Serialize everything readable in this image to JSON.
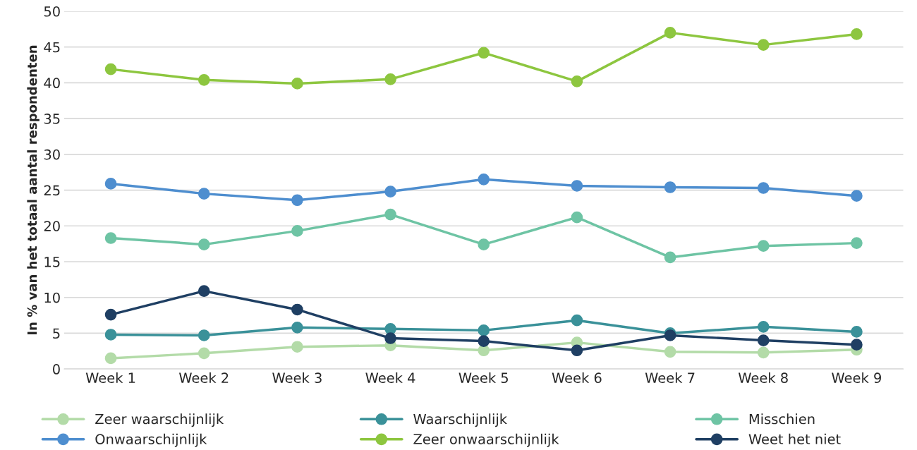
{
  "chart_data": {
    "type": "line",
    "ylabel": "In % van het totaal aantal respondenten",
    "categories": [
      "Week 1",
      "Week 2",
      "Week 3",
      "Week 4",
      "Week 5",
      "Week 6",
      "Week 7",
      "Week 8",
      "Week 9"
    ],
    "series": [
      {
        "name": "Zeer waarschijnlijk",
        "color": "#b3dba8",
        "values": [
          1.5,
          2.2,
          3.1,
          3.3,
          2.6,
          3.7,
          2.4,
          2.3,
          2.7
        ]
      },
      {
        "name": "Waarschijnlijk",
        "color": "#3a9199",
        "values": [
          4.8,
          4.7,
          5.8,
          5.6,
          5.4,
          6.8,
          5.0,
          5.9,
          5.2
        ]
      },
      {
        "name": "Misschien",
        "color": "#6ec4a4",
        "values": [
          18.3,
          17.4,
          19.3,
          21.6,
          17.4,
          21.2,
          15.6,
          17.2,
          17.6
        ]
      },
      {
        "name": "Onwaarschijnlijk",
        "color": "#4e8ecf",
        "values": [
          25.9,
          24.5,
          23.6,
          24.8,
          26.5,
          25.6,
          25.4,
          25.3,
          24.2
        ]
      },
      {
        "name": "Zeer onwaarschijnlijk",
        "color": "#8dc63f",
        "values": [
          41.9,
          40.4,
          39.9,
          40.5,
          44.2,
          40.2,
          47.0,
          45.3,
          46.8
        ]
      },
      {
        "name": "Weet het niet",
        "color": "#1f3f63",
        "values": [
          7.6,
          10.9,
          8.3,
          4.3,
          3.9,
          2.6,
          4.7,
          4.0,
          3.4
        ]
      }
    ],
    "ylim": [
      0,
      50
    ],
    "yticks": [
      0,
      5,
      10,
      15,
      20,
      25,
      30,
      35,
      40,
      45,
      50
    ],
    "grid": "y",
    "legend": "bottom",
    "marker": "circle",
    "line_style": "solid"
  }
}
